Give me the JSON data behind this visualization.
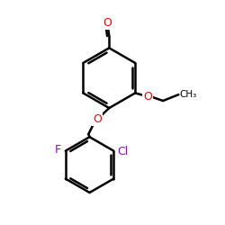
{
  "bg_color": "#ffffff",
  "bond_color": "#000000",
  "bond_width": 1.8,
  "atom_colors": {
    "O": "#ff0000",
    "F": "#9900cc",
    "Cl": "#9900cc"
  }
}
